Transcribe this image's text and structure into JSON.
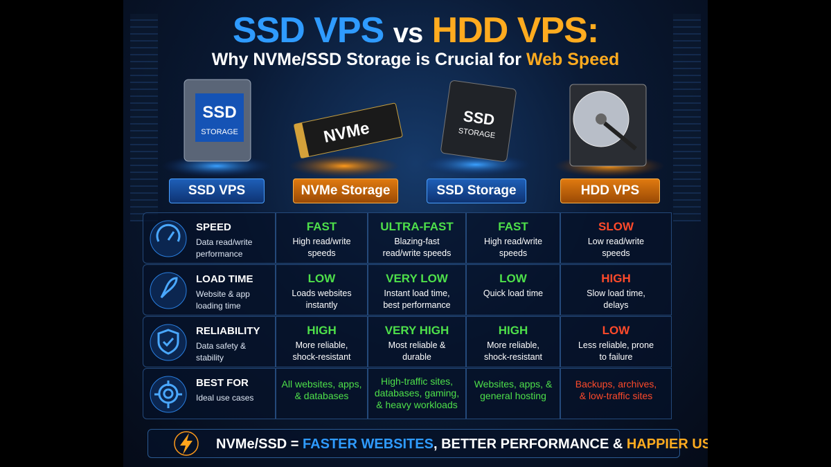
{
  "header": {
    "title_left": "SSD VPS",
    "title_mid": "vs",
    "title_right": "HDD VPS:",
    "subtitle": "Why NVMe/SSD Storage is Crucial for",
    "subtitle_highlight": "Web Speed"
  },
  "products": [
    {
      "label": "SSD VPS",
      "drive_text": "SSD",
      "drive_subtext": "STORAGE"
    },
    {
      "label": "NVMe Storage",
      "drive_text": "NVMe"
    },
    {
      "label": "SSD Storage",
      "drive_text": "SSD",
      "drive_subtext": "STORAGE"
    },
    {
      "label": "HDD VPS"
    }
  ],
  "table": {
    "rows": [
      {
        "metric": "SPEED",
        "description": "Data read/write performance",
        "cells": [
          {
            "rating": "FAST",
            "detail": "High read/write speeds"
          },
          {
            "rating": "ULTRA-FAST",
            "detail": "Blazing-fast read/write speeds"
          },
          {
            "rating": "FAST",
            "detail": "High read/write speeds"
          },
          {
            "rating": "SLOW",
            "detail": "Low read/write speeds"
          }
        ]
      },
      {
        "metric": "LOAD TIME",
        "description": "Website & app loading time",
        "cells": [
          {
            "rating": "LOW",
            "detail": "Loads websites instantly"
          },
          {
            "rating": "VERY LOW",
            "detail": "Instant load time, best performance"
          },
          {
            "rating": "LOW",
            "detail": "Quick load time"
          },
          {
            "rating": "HIGH",
            "detail": "Slow load time, delays"
          }
        ]
      },
      {
        "metric": "RELIABILITY",
        "description": "Data safety & stability",
        "cells": [
          {
            "rating": "HIGH",
            "detail": "More reliable, shock-resistant"
          },
          {
            "rating": "VERY HIGH",
            "detail": "Most reliable & durable"
          },
          {
            "rating": "HIGH",
            "detail": "More reliable, shock-resistant"
          },
          {
            "rating": "LOW",
            "detail": "Less reliable, prone to failure"
          }
        ]
      },
      {
        "metric": "BEST FOR",
        "description": "Ideal use cases",
        "cells": [
          {
            "detail": "All websites, apps, & databases"
          },
          {
            "detail": "High-traffic sites, databases, gaming, & heavy workloads"
          },
          {
            "detail": "Websites, apps, & general hosting"
          },
          {
            "detail": "Backups, archives, & low-traffic sites"
          }
        ]
      }
    ]
  },
  "footer": {
    "lead": "NVMe/SSD =",
    "highlight_1": "FASTER WEBSITES",
    "middle": ", BETTER PERFORMANCE &",
    "highlight_2": "HAPPIER USERS"
  }
}
